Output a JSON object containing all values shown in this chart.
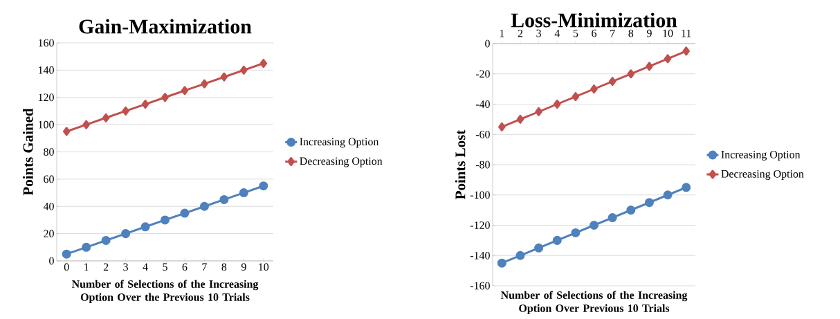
{
  "chart_data": [
    {
      "type": "line",
      "title": "Gain-Maximization",
      "xlabel": "Number of Selections of the Increasing Option Over the Previous 10 Trials",
      "ylabel": "Points Gained",
      "categories": [
        "0",
        "1",
        "2",
        "3",
        "4",
        "5",
        "6",
        "7",
        "8",
        "9",
        "10"
      ],
      "series": [
        {
          "name": "Increasing Option",
          "color": "#4f81bd",
          "marker": "circle",
          "values": [
            5,
            10,
            15,
            20,
            25,
            30,
            35,
            40,
            45,
            50,
            55
          ]
        },
        {
          "name": "Decreasing Option",
          "color": "#c0504d",
          "marker": "diamond",
          "values": [
            95,
            100,
            105,
            110,
            115,
            120,
            125,
            130,
            135,
            140,
            145
          ]
        }
      ],
      "ylim": [
        0,
        160
      ],
      "yticks": [
        0,
        20,
        40,
        60,
        80,
        100,
        120,
        140,
        160
      ],
      "grid": "y",
      "legend": "right"
    },
    {
      "type": "line",
      "title": "Loss-Minimization",
      "xlabel": "Number of Selections of the Increasing Option Over Previous 10 Trials",
      "ylabel": "Points Lost",
      "categories": [
        "1",
        "2",
        "3",
        "4",
        "5",
        "6",
        "7",
        "8",
        "9",
        "10",
        "11"
      ],
      "series": [
        {
          "name": "Increasing Option",
          "color": "#4f81bd",
          "marker": "circle",
          "values": [
            -145,
            -140,
            -135,
            -130,
            -125,
            -120,
            -115,
            -110,
            -105,
            -100,
            -95
          ]
        },
        {
          "name": "Decreasing Option",
          "color": "#c0504d",
          "marker": "diamond",
          "values": [
            -55,
            -50,
            -45,
            -40,
            -35,
            -30,
            -25,
            -20,
            -15,
            -10,
            -5
          ]
        }
      ],
      "ylim": [
        -160,
        0
      ],
      "yticks": [
        -160,
        -140,
        -120,
        -100,
        -80,
        -60,
        -40,
        -20,
        0
      ],
      "grid": "y",
      "legend": "right"
    }
  ]
}
